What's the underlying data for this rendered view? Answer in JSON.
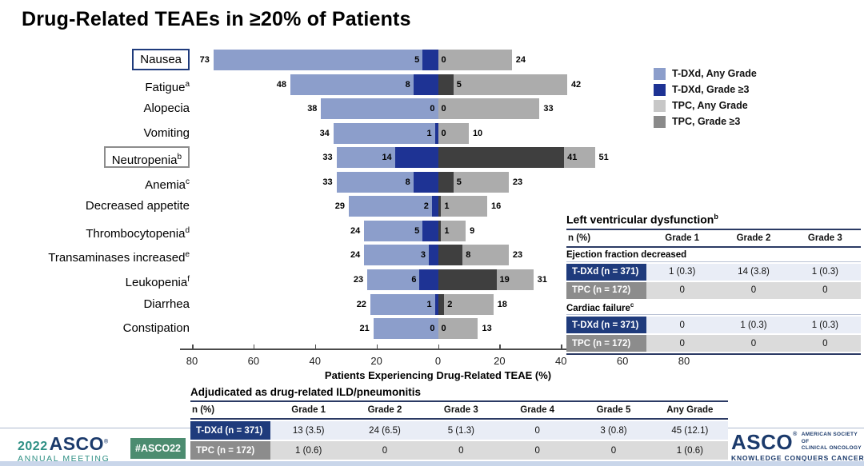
{
  "title": "Drug-Related TEAEs in ≥20% of Patients",
  "chart_data": {
    "type": "bar",
    "variant": "diverging-horizontal",
    "title": "Drug-Related TEAEs in ≥20% of Patients",
    "xlabel": "Patients Experiencing Drug-Related TEAE (%)",
    "x_ticks": [
      80,
      60,
      40,
      20,
      0,
      20,
      40,
      60,
      80
    ],
    "x_max_each_side": 80,
    "grid": false,
    "legend_position": "top-right",
    "legend": [
      {
        "name": "T-DXd, Any Grade",
        "color": "#8C9ECB"
      },
      {
        "name": "T-DXd, Grade ≥3",
        "color": "#1E3394"
      },
      {
        "name": "TPC, Any Grade",
        "color": "#C7C7C7"
      },
      {
        "name": "TPC, Grade ≥3",
        "color": "#8A8A8A"
      }
    ],
    "bar_colors": {
      "tdxd_any": "#8C9ECB",
      "tdxd_g3": "#1E3394",
      "tpc_any": "#ACACAC",
      "tpc_g3": "#3F3F3F"
    },
    "categories": [
      {
        "label": "Nausea",
        "sup": "",
        "box": "navy",
        "tdxd_any": 73,
        "tdxd_g3": 5,
        "tpc_g3": 0,
        "tpc_any": 24
      },
      {
        "label": "Fatigue",
        "sup": "a",
        "box": null,
        "tdxd_any": 48,
        "tdxd_g3": 8,
        "tpc_g3": 5,
        "tpc_any": 42
      },
      {
        "label": "Alopecia",
        "sup": "",
        "box": null,
        "tdxd_any": 38,
        "tdxd_g3": 0,
        "tpc_g3": 0,
        "tpc_any": 33
      },
      {
        "label": "Vomiting",
        "sup": "",
        "box": null,
        "tdxd_any": 34,
        "tdxd_g3": 1,
        "tpc_g3": 0,
        "tpc_any": 10
      },
      {
        "label": "Neutropenia",
        "sup": "b",
        "box": "gray",
        "tdxd_any": 33,
        "tdxd_g3": 14,
        "tpc_g3": 41,
        "tpc_any": 51
      },
      {
        "label": "Anemia",
        "sup": "c",
        "box": null,
        "tdxd_any": 33,
        "tdxd_g3": 8,
        "tpc_g3": 5,
        "tpc_any": 23
      },
      {
        "label": "Decreased appetite",
        "sup": "",
        "box": null,
        "tdxd_any": 29,
        "tdxd_g3": 2,
        "tpc_g3": 1,
        "tpc_any": 16
      },
      {
        "label": "Thrombocytopenia",
        "sup": "d",
        "box": null,
        "tdxd_any": 24,
        "tdxd_g3": 5,
        "tpc_g3": 1,
        "tpc_any": 9
      },
      {
        "label": "Transaminases increased",
        "sup": "e",
        "box": null,
        "tdxd_any": 24,
        "tdxd_g3": 3,
        "tpc_g3": 8,
        "tpc_any": 23
      },
      {
        "label": "Leukopenia",
        "sup": "f",
        "box": null,
        "tdxd_any": 23,
        "tdxd_g3": 6,
        "tpc_g3": 19,
        "tpc_any": 31
      },
      {
        "label": "Diarrhea",
        "sup": "",
        "box": null,
        "tdxd_any": 22,
        "tdxd_g3": 1,
        "tpc_g3": 2,
        "tpc_any": 18
      },
      {
        "label": "Constipation",
        "sup": "",
        "box": null,
        "tdxd_any": 21,
        "tdxd_g3": 0,
        "tpc_g3": 0,
        "tpc_any": 13
      }
    ]
  },
  "lvd_table": {
    "title": "Left ventricular dysfunction",
    "title_sup": "b",
    "columns": [
      "n (%)",
      "Grade 1",
      "Grade 2",
      "Grade 3"
    ],
    "sections": [
      {
        "header": "Ejection fraction decreased",
        "header_sup": "",
        "rows": [
          {
            "header": "T-DXd (n = 371)",
            "type": "tdxd",
            "values": [
              "1 (0.3)",
              "14 (3.8)",
              "1 (0.3)"
            ]
          },
          {
            "header": "TPC (n = 172)",
            "type": "tpc",
            "values": [
              "0",
              "0",
              "0"
            ]
          }
        ]
      },
      {
        "header": "Cardiac failure",
        "header_sup": "c",
        "rows": [
          {
            "header": "T-DXd (n = 371)",
            "type": "tdxd",
            "values": [
              "0",
              "1 (0.3)",
              "1 (0.3)"
            ]
          },
          {
            "header": "TPC (n = 172)",
            "type": "tpc",
            "values": [
              "0",
              "0",
              "0"
            ]
          }
        ]
      }
    ]
  },
  "ild_table": {
    "title": "Adjudicated as drug-related ILD/pneumonitis",
    "columns": [
      "n (%)",
      "Grade 1",
      "Grade 2",
      "Grade 3",
      "Grade 4",
      "Grade 5",
      "Any Grade"
    ],
    "rows": [
      {
        "header": "T-DXd (n = 371)",
        "type": "tdxd",
        "values": [
          "13 (3.5)",
          "24 (6.5)",
          "5 (1.3)",
          "0",
          "3 (0.8)",
          "45 (12.1)"
        ]
      },
      {
        "header": "TPC (n = 172)",
        "type": "tpc",
        "values": [
          "1 (0.6)",
          "0",
          "0",
          "0",
          "0",
          "1 (0.6)"
        ]
      }
    ]
  },
  "footer": {
    "year": "2022",
    "asco": "ASCO",
    "annual_meeting": "ANNUAL MEETING",
    "hashtag": "#ASCO22",
    "asco_right": "ASCO",
    "society_line1": "AMERICAN SOCIETY OF",
    "society_line2": "CLINICAL ONCOLOGY",
    "tagline": "KNOWLEDGE CONQUERS CANCER"
  },
  "colors": {
    "tdxd_navy": "#1F3B7C",
    "tpc_gray": "#8C8C8C",
    "tdxd_row_bg": "#E9EDF6",
    "tpc_row_bg": "#DBDBDB",
    "teal": "#2E8F84",
    "logo_navy": "#1B3A6B",
    "badge_green": "#4C8C70",
    "bottom_strip": "#C9D6EA"
  }
}
